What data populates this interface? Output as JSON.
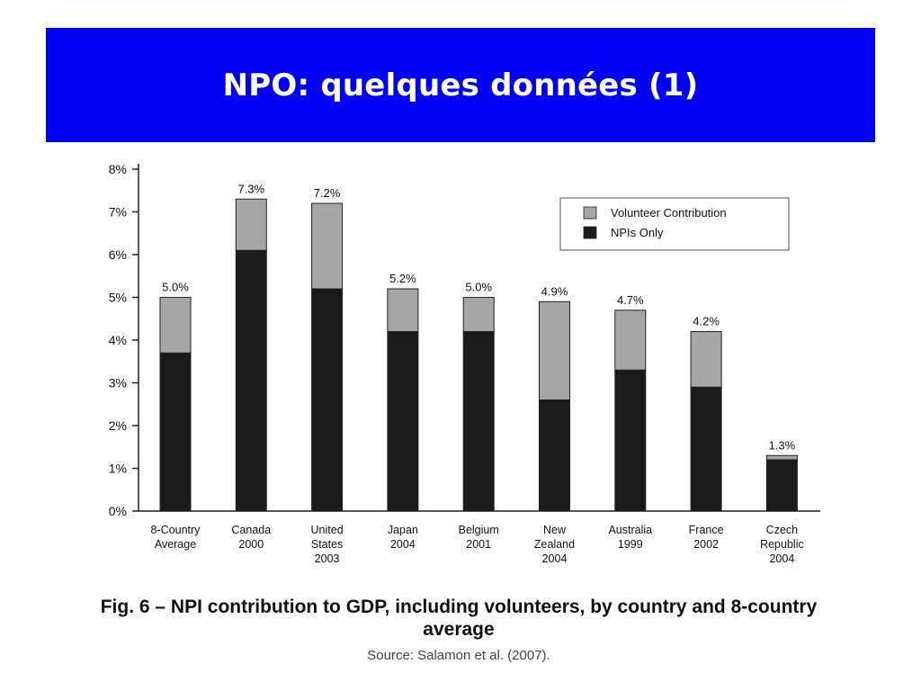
{
  "slide": {
    "title": "NPO: quelques données (1)"
  },
  "caption": {
    "figure": "Fig. 6  –  NPI contribution to GDP, including volunteers, by country and 8-country average",
    "source": "Source: Salamon et al. (2007)."
  },
  "colors": {
    "banner": "#0000f5",
    "npis_only": "#1a1a1a",
    "volunteer": "#a6a6a6"
  },
  "chart_data": {
    "type": "bar",
    "stacked": true,
    "categories": [
      [
        "8-Country",
        "Average"
      ],
      [
        "Canada",
        "2000"
      ],
      [
        "United",
        "States",
        "2003"
      ],
      [
        "Japan",
        "2004"
      ],
      [
        "Belgium",
        "2001"
      ],
      [
        "New",
        "Zealand",
        "2004"
      ],
      [
        "Australia",
        "1999"
      ],
      [
        "France",
        "2002"
      ],
      [
        "Czech",
        "Republic",
        "2004"
      ]
    ],
    "series": [
      {
        "name": "NPIs Only",
        "values": [
          3.7,
          6.1,
          5.2,
          4.2,
          4.2,
          2.6,
          3.3,
          2.9,
          1.2
        ]
      },
      {
        "name": "Volunteer Contribution",
        "values": [
          1.3,
          1.2,
          2.0,
          1.0,
          0.8,
          2.3,
          1.4,
          1.3,
          0.1
        ]
      }
    ],
    "totals_labels": [
      "5.0%",
      "7.3%",
      "7.2%",
      "5.2%",
      "5.0%",
      "4.9%",
      "4.7%",
      "4.2%",
      "1.3%"
    ],
    "y_ticks": [
      "0%",
      "1%",
      "2%",
      "3%",
      "4%",
      "5%",
      "6%",
      "7%",
      "8%"
    ],
    "ylim": [
      0,
      8
    ],
    "legend": [
      "Volunteer Contribution",
      "NPIs Only"
    ],
    "legend_position": "top-right",
    "grid": false
  }
}
